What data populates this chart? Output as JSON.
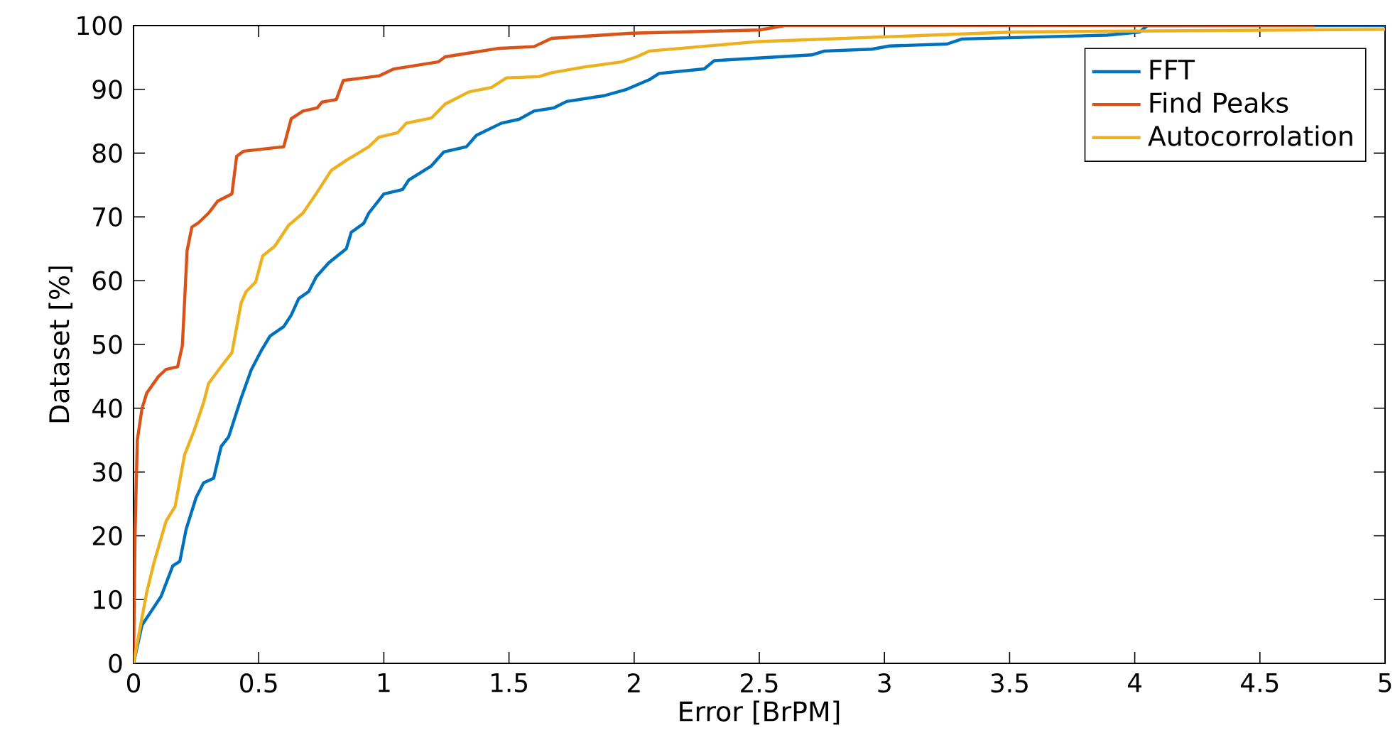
{
  "chart_data": {
    "type": "line",
    "xlabel": "Error [BrPM]",
    "ylabel": "Dataset [%]",
    "xlim": [
      0,
      5
    ],
    "ylim": [
      0,
      100
    ],
    "xticks": [
      0,
      0.5,
      1,
      1.5,
      2,
      2.5,
      3,
      3.5,
      4,
      4.5,
      5
    ],
    "yticks": [
      0,
      10,
      20,
      30,
      40,
      50,
      60,
      70,
      80,
      90,
      100
    ],
    "legend": "top right",
    "series": [
      {
        "name": "FFT",
        "color": "#0072bd",
        "x": [
          0,
          0.034,
          0.11,
          0.157,
          0.185,
          0.21,
          0.25,
          0.28,
          0.32,
          0.35,
          0.38,
          0.43,
          0.47,
          0.51,
          0.545,
          0.6,
          0.63,
          0.66,
          0.7,
          0.73,
          0.78,
          0.85,
          0.87,
          0.92,
          0.94,
          1.0,
          1.075,
          1.1,
          1.19,
          1.24,
          1.33,
          1.37,
          1.47,
          1.54,
          1.6,
          1.68,
          1.73,
          1.88,
          1.97,
          2.06,
          2.1,
          2.28,
          2.32,
          2.71,
          2.76,
          2.95,
          3.02,
          3.25,
          3.31,
          3.89,
          4.02,
          4.05,
          5
        ],
        "values": [
          0,
          6,
          10.5,
          15.3,
          16,
          21,
          26,
          28.3,
          29,
          34,
          35.5,
          41.6,
          46,
          49,
          51.3,
          52.8,
          54.6,
          57.2,
          58.3,
          60.6,
          62.8,
          65,
          67.6,
          69,
          70.6,
          73.6,
          74.3,
          75.8,
          78,
          80.2,
          81,
          82.8,
          84.7,
          85.3,
          86.6,
          87.1,
          88.1,
          89,
          90,
          91.5,
          92.5,
          93.2,
          94.5,
          95.4,
          96,
          96.3,
          96.8,
          97.1,
          97.9,
          98.5,
          99,
          100,
          100
        ]
      },
      {
        "name": "Find Peaks",
        "color": "#d95319",
        "x": [
          0,
          0.006,
          0.015,
          0.034,
          0.053,
          0.1,
          0.13,
          0.176,
          0.195,
          0.214,
          0.233,
          0.26,
          0.3,
          0.337,
          0.393,
          0.412,
          0.44,
          0.6,
          0.63,
          0.677,
          0.734,
          0.753,
          0.81,
          0.838,
          0.98,
          1.04,
          1.217,
          1.245,
          1.453,
          1.6,
          1.67,
          1.99,
          2.5,
          2.6,
          4.72
        ],
        "values": [
          0,
          20,
          35,
          40,
          42.4,
          45,
          46.1,
          46.5,
          49.8,
          64.7,
          68.4,
          69.1,
          70.6,
          72.5,
          73.6,
          79.5,
          80.3,
          81,
          85.4,
          86.6,
          87.1,
          88,
          88.4,
          91.4,
          92.1,
          93.2,
          94.3,
          95.1,
          96.4,
          96.7,
          98,
          98.8,
          99.3,
          100,
          100
        ]
      },
      {
        "name": "Autocorrolation",
        "color": "#edb120",
        "x": [
          0,
          0.053,
          0.081,
          0.13,
          0.166,
          0.204,
          0.242,
          0.28,
          0.3,
          0.355,
          0.393,
          0.43,
          0.45,
          0.488,
          0.516,
          0.564,
          0.62,
          0.677,
          0.734,
          0.79,
          0.847,
          0.94,
          0.98,
          1.055,
          1.09,
          1.19,
          1.245,
          1.34,
          1.43,
          1.49,
          1.62,
          1.67,
          1.8,
          1.95,
          2.01,
          2.06,
          2.5,
          2.98,
          3.52,
          5
        ],
        "values": [
          0,
          11.2,
          15.7,
          22.3,
          24.6,
          32.7,
          36.5,
          40.9,
          43.9,
          46.8,
          48.7,
          56.5,
          58.3,
          59.8,
          63.9,
          65.4,
          68.7,
          70.6,
          73.9,
          77.3,
          78.8,
          81,
          82.5,
          83.2,
          84.7,
          85.5,
          87.7,
          89.6,
          90.3,
          91.8,
          92,
          92.6,
          93.5,
          94.3,
          95.1,
          96,
          97.5,
          98.2,
          99,
          99.4
        ]
      }
    ]
  }
}
